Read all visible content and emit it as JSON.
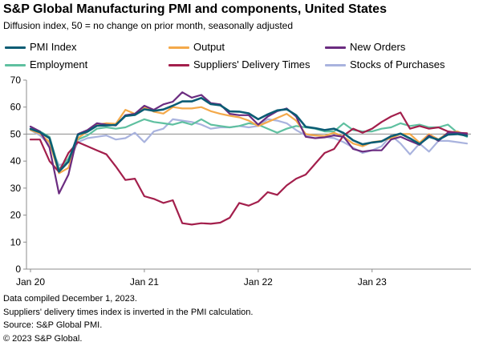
{
  "header": {
    "title": "S&P Global Manufacturing PMI and components, United States",
    "subtitle": "Diffusion index, 50 = no change on prior month, seasonally adjusted"
  },
  "legend": [
    {
      "name": "PMI Index",
      "color": "#0b5c74"
    },
    {
      "name": "Output",
      "color": "#f4a94a"
    },
    {
      "name": "New Orders",
      "color": "#6b2c80"
    },
    {
      "name": "Employment",
      "color": "#5fc0a0"
    },
    {
      "name": "Suppliers' Delivery Times",
      "color": "#a31f4c"
    },
    {
      "name": "Stocks of Purchases",
      "color": "#a9b3de"
    }
  ],
  "footer": {
    "line1": "Data compiled December 1, 2023.",
    "line2": "Suppliers' delivery times index is inverted in the PMI calculation.",
    "line3": "Source: S&P Global PMI.",
    "line4": "© 2023 S&P Global."
  },
  "chart_data": {
    "type": "line",
    "title": "S&P Global Manufacturing PMI and components, United States",
    "subtitle": "Diffusion index, 50 = no change on prior month, seasonally adjusted",
    "ylim": [
      0,
      70
    ],
    "yticks": [
      0,
      10,
      20,
      30,
      40,
      50,
      60,
      70
    ],
    "reference_line": 50,
    "x": [
      "2020-01",
      "2020-02",
      "2020-03",
      "2020-04",
      "2020-05",
      "2020-06",
      "2020-07",
      "2020-08",
      "2020-09",
      "2020-10",
      "2020-11",
      "2020-12",
      "2021-01",
      "2021-02",
      "2021-03",
      "2021-04",
      "2021-05",
      "2021-06",
      "2021-07",
      "2021-08",
      "2021-09",
      "2021-10",
      "2021-11",
      "2021-12",
      "2022-01",
      "2022-02",
      "2022-03",
      "2022-04",
      "2022-05",
      "2022-06",
      "2022-07",
      "2022-08",
      "2022-09",
      "2022-10",
      "2022-11",
      "2022-12",
      "2023-01",
      "2023-02",
      "2023-03",
      "2023-04",
      "2023-05",
      "2023-06",
      "2023-07",
      "2023-08",
      "2023-09",
      "2023-10",
      "2023-11"
    ],
    "xtick_labels": [
      {
        "x": "2020-01",
        "label": "Jan 20"
      },
      {
        "x": "2021-01",
        "label": "Jan 21"
      },
      {
        "x": "2022-01",
        "label": "Jan 22"
      },
      {
        "x": "2023-01",
        "label": "Jan 23"
      }
    ],
    "grid": false,
    "series": [
      {
        "name": "PMI Index",
        "color": "#0b5c74",
        "values": [
          51.9,
          50.7,
          48.5,
          36.1,
          39.8,
          49.8,
          50.9,
          53.1,
          53.2,
          53.4,
          56.7,
          57.1,
          59.2,
          58.6,
          59.1,
          60.5,
          62.1,
          62.1,
          63.4,
          61.1,
          60.7,
          58.4,
          58.3,
          57.7,
          55.5,
          57.3,
          58.8,
          59.2,
          57.0,
          52.7,
          52.2,
          51.5,
          52.0,
          50.4,
          47.7,
          46.2,
          46.9,
          47.3,
          49.2,
          50.2,
          48.4,
          46.3,
          49.0,
          47.9,
          49.8,
          50.0,
          49.4
        ]
      },
      {
        "name": "Output",
        "color": "#f4a94a",
        "values": [
          51.5,
          50.2,
          47.0,
          35.5,
          37.5,
          48.5,
          51.0,
          53.5,
          54.0,
          53.8,
          59.0,
          57.5,
          60.0,
          58.3,
          57.6,
          60.0,
          59.5,
          59.5,
          60.0,
          58.5,
          57.5,
          56.8,
          56.2,
          55.0,
          53.0,
          54.5,
          56.0,
          57.5,
          55.0,
          50.0,
          49.5,
          49.3,
          50.5,
          49.0,
          46.5,
          45.5,
          47.0,
          47.5,
          48.5,
          50.0,
          50.0,
          46.8,
          50.0,
          48.0,
          50.5,
          51.0,
          49.5
        ]
      },
      {
        "name": "New Orders",
        "color": "#6b2c80",
        "values": [
          52.8,
          51.0,
          45.0,
          28.0,
          35.0,
          50.0,
          51.5,
          54.0,
          53.5,
          53.2,
          57.0,
          57.5,
          60.5,
          59.0,
          61.0,
          62.0,
          65.5,
          63.5,
          64.5,
          61.5,
          61.0,
          57.5,
          57.0,
          57.0,
          53.5,
          56.5,
          58.5,
          59.5,
          56.5,
          49.0,
          48.5,
          48.8,
          49.5,
          49.0,
          44.5,
          43.5,
          44.0,
          44.0,
          48.0,
          49.0,
          47.5,
          46.0,
          49.5,
          47.5,
          50.5,
          50.5,
          50.0
        ]
      },
      {
        "name": "Employment",
        "color": "#5fc0a0",
        "values": [
          52.0,
          51.0,
          49.0,
          37.0,
          41.0,
          48.0,
          49.5,
          52.0,
          52.5,
          52.0,
          52.5,
          54.0,
          55.5,
          54.5,
          54.0,
          53.5,
          54.5,
          53.5,
          55.5,
          53.5,
          53.0,
          52.5,
          53.0,
          54.0,
          53.5,
          52.0,
          50.5,
          52.0,
          53.0,
          52.5,
          52.0,
          51.0,
          51.0,
          54.0,
          51.5,
          51.0,
          51.0,
          52.0,
          52.5,
          54.0,
          53.0,
          53.5,
          52.5,
          52.5,
          53.5,
          50.5,
          49.0
        ]
      },
      {
        "name": "Suppliers' Delivery Times",
        "color": "#a31f4c",
        "values": [
          48.0,
          48.0,
          40.0,
          36.0,
          43.0,
          47.0,
          45.5,
          44.0,
          42.5,
          38.0,
          33.0,
          33.5,
          27.0,
          26.0,
          24.5,
          25.5,
          17.0,
          16.5,
          17.0,
          16.8,
          17.2,
          19.0,
          24.5,
          23.5,
          25.0,
          28.5,
          27.5,
          31.0,
          33.5,
          35.0,
          39.0,
          43.0,
          44.5,
          49.5,
          52.0,
          50.5,
          52.0,
          54.5,
          56.5,
          58.0,
          52.0,
          53.0,
          52.0,
          52.5,
          51.0,
          50.5,
          50.3
        ]
      },
      {
        "name": "Stocks of Purchases",
        "color": "#a9b3de",
        "values": [
          51.5,
          49.5,
          46.0,
          38.5,
          39.5,
          47.0,
          48.5,
          49.0,
          49.5,
          48.0,
          48.5,
          50.5,
          47.0,
          51.0,
          52.0,
          55.5,
          55.0,
          54.5,
          53.5,
          52.0,
          52.5,
          52.5,
          53.0,
          52.5,
          53.0,
          55.5,
          55.0,
          54.0,
          51.5,
          49.5,
          49.5,
          49.0,
          48.5,
          47.0,
          45.0,
          43.0,
          44.0,
          45.5,
          49.5,
          46.5,
          42.5,
          46.5,
          43.5,
          47.5,
          47.5,
          47.0,
          46.5
        ]
      }
    ]
  }
}
